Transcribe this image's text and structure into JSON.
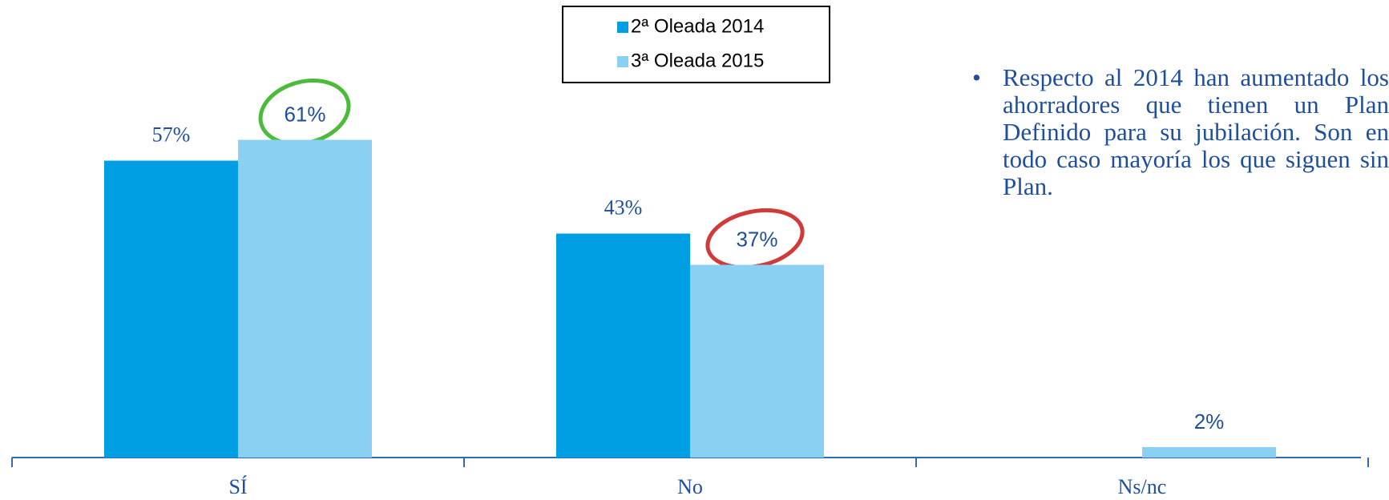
{
  "chart_data": {
    "type": "bar",
    "categories": [
      "SÍ",
      "No",
      "Ns/nc"
    ],
    "series": [
      {
        "name": "2ª Oleada 2014",
        "color": "#009fe3",
        "values": [
          57,
          43,
          null
        ],
        "value_labels": [
          "57%",
          "43%",
          null
        ]
      },
      {
        "name": "3ª Oleada 2015",
        "color": "#8ad0f2",
        "values": [
          61,
          37,
          2
        ],
        "value_labels": [
          "61%",
          "37%",
          "2%"
        ]
      }
    ],
    "ylim": [
      0,
      70
    ],
    "legend": "top",
    "note": "Respecto al 2014 han aumentado los ahorradores que tienen un Plan Definido para su jubilación. Son en todo caso mayoría los que siguen sin Plan."
  }
}
